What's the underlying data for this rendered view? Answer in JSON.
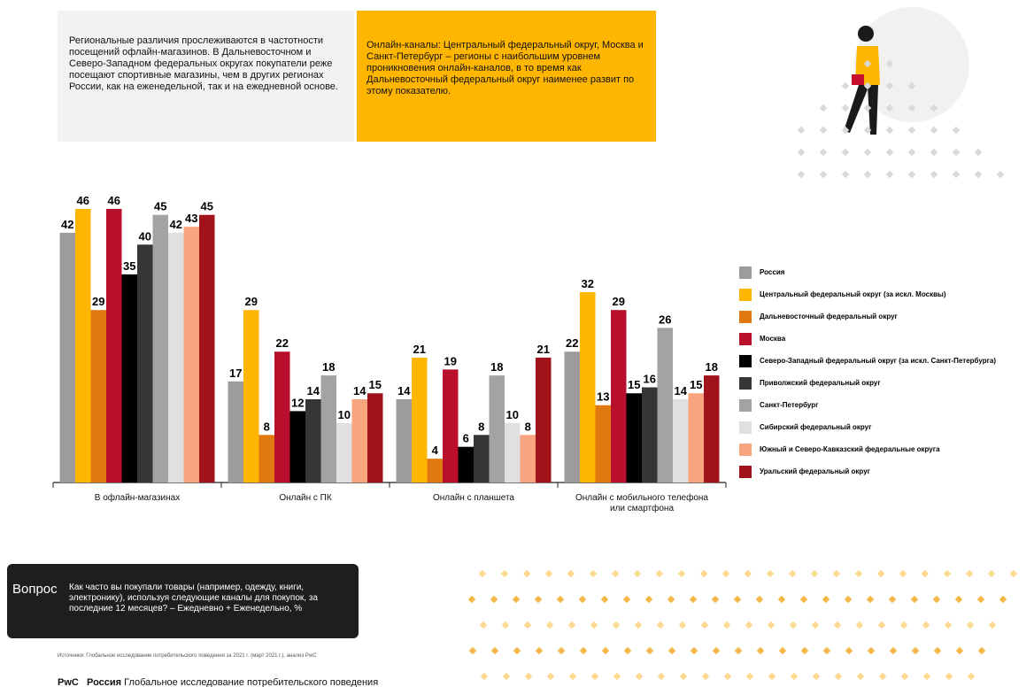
{
  "notes": {
    "left": "Региональные различия прослеживаются в частотности посещений офлайн-магазинов. В Дальневосточном и Северо-Западном федеральных округах покупатели реже посещают спортивные магазины, чем в других регионах России, как на еженедельной, так и на ежедневной основе.",
    "right": "Онлайн-каналы: Центральный федеральный округ, Москва и Санкт-Петербург – регионы с наибольшим уровнем проникновения онлайн-каналов, в то время как Дальневосточный федеральный округ наименее развит по этому показателю."
  },
  "chart_data": {
    "type": "bar",
    "categories": [
      "В офлайн-магазинах",
      "Онлайн с ПК",
      "Онлайн с планшета",
      "Онлайн с мобильного телефона или смартфона"
    ],
    "series": [
      {
        "name": "Россия",
        "color": "#9c9c9c",
        "values": [
          42,
          17,
          14,
          22
        ]
      },
      {
        "name": "Центральный федеральный округ (за искл. Москвы)",
        "color": "#ffb600",
        "values": [
          46,
          29,
          21,
          32
        ]
      },
      {
        "name": "Дальневосточный федеральный округ",
        "color": "#e07a10",
        "values": [
          29,
          8,
          4,
          13
        ]
      },
      {
        "name": "Москва",
        "color": "#b8102c",
        "values": [
          46,
          22,
          19,
          29
        ]
      },
      {
        "name": "Северо-Западный федеральный округ (за искл. Санкт-Петербурга)",
        "color": "#000000",
        "values": [
          35,
          12,
          6,
          15
        ]
      },
      {
        "name": "Приволжский федеральный округ",
        "color": "#363636",
        "values": [
          40,
          14,
          8,
          16
        ]
      },
      {
        "name": "Санкт-Петербург",
        "color": "#a3a3a3",
        "values": [
          45,
          18,
          18,
          26
        ]
      },
      {
        "name": "Сибирский федеральный округ",
        "color": "#e0e0e0",
        "values": [
          42,
          10,
          10,
          14
        ]
      },
      {
        "name": "Южный и Северо-Кавказский федеральные округа",
        "color": "#f8a47f",
        "values": [
          43,
          14,
          8,
          15
        ]
      },
      {
        "name": "Уральский федеральный округ",
        "color": "#a1131b",
        "values": [
          45,
          15,
          21,
          18
        ]
      }
    ]
  },
  "question": {
    "label": "Вопрос",
    "text": "Как часто вы покупали товары (например, одежду, книги, электронику), используя следующие каналы  для покупок, за последние 12 месяцев? – Ежедневно + Еженедельно, %"
  },
  "source": "Источники: Глобальное исследование потребительского поведения за 2021 г. (март 2021 г.), анализ PwC",
  "footer": {
    "brand": "PwC",
    "country": "Россия",
    "title": "Глобальное исследование потребительского поведения"
  }
}
